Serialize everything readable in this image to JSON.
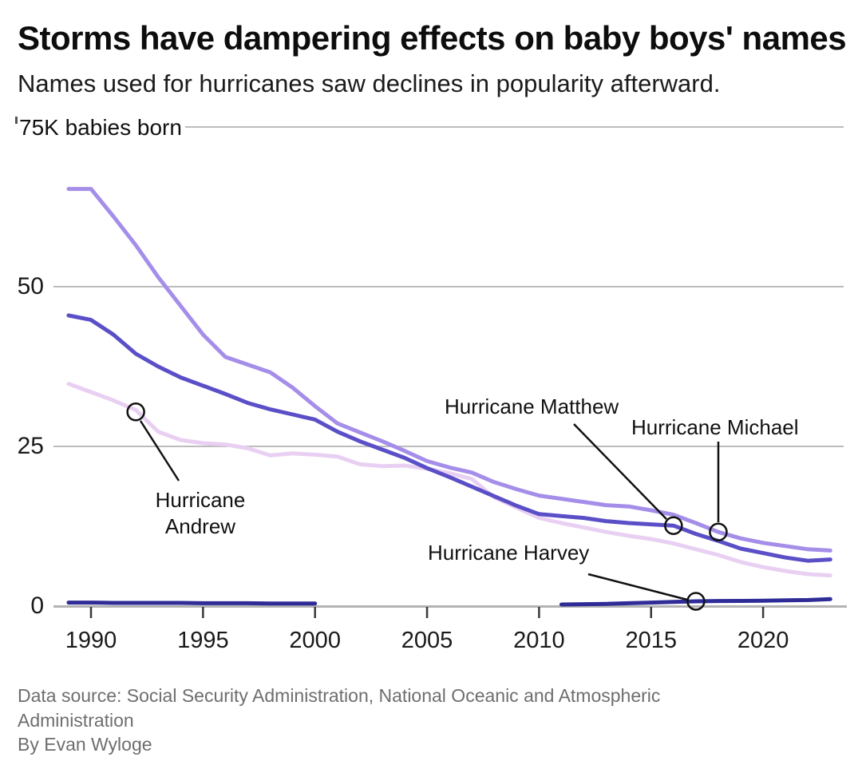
{
  "header": {
    "title": "Storms have dampering effects on baby boys' names",
    "subtitle": "Names used for hurricanes saw declines in popularity afterward."
  },
  "footer": {
    "source": "Data source: Social Security Administration, National Oceanic and Atmospheric Administration",
    "byline": "By Evan Wyloge"
  },
  "chart_data": {
    "type": "line",
    "title": "Storms have dampering effects on baby boys' names",
    "ylabel": "75K babies born",
    "y_ticks": [
      {
        "value": 75,
        "label": "75K babies born"
      },
      {
        "value": 50,
        "label": "50"
      },
      {
        "value": 25,
        "label": "25"
      },
      {
        "value": 0,
        "label": "0"
      }
    ],
    "x_ticks": [
      1990,
      1995,
      2000,
      2005,
      2010,
      2015,
      2020
    ],
    "x_range": [
      1989,
      2023
    ],
    "ylim": [
      0,
      75
    ],
    "grid": true,
    "x": [
      1989,
      1990,
      1991,
      1992,
      1993,
      1994,
      1995,
      1996,
      1997,
      1998,
      1999,
      2000,
      2001,
      2002,
      2003,
      2004,
      2005,
      2006,
      2007,
      2008,
      2009,
      2010,
      2011,
      2012,
      2013,
      2014,
      2015,
      2016,
      2017,
      2018,
      2019,
      2020,
      2021,
      2022,
      2023
    ],
    "series": [
      {
        "name": "Andrew",
        "color": "#e9d0f3",
        "values": [
          34.8,
          33.5,
          32.2,
          30.7,
          27.3,
          26.0,
          25.5,
          25.3,
          24.7,
          23.6,
          23.9,
          23.7,
          23.4,
          22.2,
          21.9,
          22.0,
          21.5,
          20.8,
          19.9,
          17.0,
          15.4,
          13.8,
          13.0,
          12.3,
          11.6,
          11.0,
          10.5,
          9.8,
          8.9,
          8.0,
          6.9,
          6.1,
          5.5,
          5.0,
          4.8
        ]
      },
      {
        "name": "Michael",
        "color": "#a58ee9",
        "values": [
          65.3,
          65.3,
          61.0,
          56.5,
          51.5,
          47.0,
          42.5,
          39.0,
          37.8,
          36.6,
          34.2,
          31.3,
          28.6,
          27.2,
          25.8,
          24.3,
          22.7,
          21.7,
          20.9,
          19.4,
          18.3,
          17.3,
          16.8,
          16.3,
          15.8,
          15.6,
          15.0,
          14.3,
          13.0,
          11.6,
          10.6,
          9.9,
          9.4,
          8.9,
          8.7
        ]
      },
      {
        "name": "Matthew",
        "color": "#5b4fc7",
        "values": [
          45.5,
          44.8,
          42.5,
          39.5,
          37.5,
          35.8,
          34.5,
          33.2,
          31.8,
          30.8,
          30.0,
          29.2,
          27.3,
          25.8,
          24.5,
          23.2,
          21.6,
          20.2,
          18.7,
          17.2,
          15.7,
          14.4,
          14.1,
          13.8,
          13.3,
          13.0,
          12.8,
          12.6,
          11.3,
          10.2,
          9.0,
          8.3,
          7.6,
          7.1,
          7.3
        ]
      },
      {
        "name": "Harvey",
        "color": "#2f2c97",
        "values": [
          0.55,
          0.55,
          0.5,
          0.5,
          0.5,
          0.5,
          0.45,
          0.45,
          0.45,
          0.4,
          0.4,
          0.4,
          null,
          null,
          null,
          null,
          null,
          null,
          null,
          null,
          null,
          null,
          0.25,
          0.3,
          0.35,
          0.45,
          0.55,
          0.65,
          0.75,
          0.8,
          0.82,
          0.85,
          0.9,
          0.95,
          1.1
        ]
      }
    ],
    "annotations": [
      {
        "id": "andrew",
        "lines": [
          "Hurricane",
          "Andrew"
        ],
        "series": "Andrew",
        "year": 1992,
        "value": 30.4
      },
      {
        "id": "matthew",
        "lines": [
          "Hurricane Matthew"
        ],
        "series": "Matthew",
        "year": 2016,
        "value": 12.6
      },
      {
        "id": "michael",
        "lines": [
          "Hurricane Michael"
        ],
        "series": "Michael",
        "year": 2018,
        "value": 11.6
      },
      {
        "id": "harvey",
        "lines": [
          "Hurricane Harvey"
        ],
        "series": "Harvey",
        "year": 2017,
        "value": 0.75
      }
    ],
    "legend_position": "annotated-inline",
    "axis_color": "#b3b3b3",
    "grid_color": "#bcbcbc"
  }
}
